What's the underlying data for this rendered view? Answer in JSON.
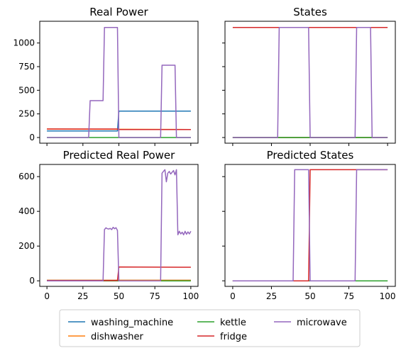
{
  "chart_data": [
    {
      "type": "line",
      "title": "Real Power",
      "xlim": [
        -5,
        105
      ],
      "ylim": [
        -60,
        1230
      ],
      "xticks": [
        0,
        25,
        50,
        75,
        100
      ],
      "show_x_tick_labels": false,
      "yticks": [
        0,
        250,
        500,
        750,
        1000
      ],
      "show_y_tick_labels": true,
      "series": [
        {
          "name": "washing_machine",
          "color": "#1f77b4",
          "points": [
            [
              0,
              70
            ],
            [
              49,
              70
            ],
            [
              50,
              280
            ],
            [
              100,
              280
            ]
          ]
        },
        {
          "name": "dishwasher",
          "color": "#ff7f0e",
          "points": [
            [
              0,
              90
            ],
            [
              100,
              85
            ]
          ]
        },
        {
          "name": "kettle",
          "color": "#2ca02c",
          "points": [
            [
              0,
              0
            ],
            [
              100,
              0
            ]
          ]
        },
        {
          "name": "fridge",
          "color": "#d62728",
          "points": [
            [
              0,
              90
            ],
            [
              49,
              90
            ],
            [
              50,
              85
            ],
            [
              100,
              85
            ]
          ]
        },
        {
          "name": "microwave",
          "color": "#9467bd",
          "points": [
            [
              0,
              0
            ],
            [
              29,
              0
            ],
            [
              30,
              390
            ],
            [
              39,
              390
            ],
            [
              40,
              1165
            ],
            [
              49,
              1165
            ],
            [
              50,
              0
            ],
            [
              79,
              0
            ],
            [
              80,
              765
            ],
            [
              89,
              765
            ],
            [
              90,
              0
            ],
            [
              100,
              0
            ]
          ]
        }
      ]
    },
    {
      "type": "line",
      "title": "States",
      "xlim": [
        -5,
        105
      ],
      "ylim": [
        -60,
        1230
      ],
      "xticks": [
        0,
        25,
        50,
        75,
        100
      ],
      "show_x_tick_labels": false,
      "yticks": [
        0,
        250,
        500,
        750,
        1000
      ],
      "show_y_tick_labels": false,
      "series": [
        {
          "name": "washing_machine",
          "color": "#1f77b4",
          "points": [
            [
              0,
              0
            ],
            [
              100,
              0
            ]
          ]
        },
        {
          "name": "dishwasher",
          "color": "#ff7f0e",
          "points": [
            [
              0,
              0
            ],
            [
              100,
              0
            ]
          ]
        },
        {
          "name": "kettle",
          "color": "#2ca02c",
          "points": [
            [
              0,
              0
            ],
            [
              100,
              0
            ]
          ]
        },
        {
          "name": "fridge",
          "color": "#d62728",
          "points": [
            [
              0,
              1165
            ],
            [
              100,
              1165
            ]
          ]
        },
        {
          "name": "microwave",
          "color": "#9467bd",
          "points": [
            [
              0,
              0
            ],
            [
              29,
              0
            ],
            [
              30,
              1165
            ],
            [
              49,
              1165
            ],
            [
              50,
              0
            ],
            [
              79,
              0
            ],
            [
              80,
              1165
            ],
            [
              89,
              1165
            ],
            [
              90,
              0
            ],
            [
              100,
              0
            ]
          ]
        }
      ]
    },
    {
      "type": "line",
      "title": "Predicted Real Power",
      "xlim": [
        -5,
        105
      ],
      "ylim": [
        -32,
        670
      ],
      "xticks": [
        0,
        25,
        50,
        75,
        100
      ],
      "show_x_tick_labels": true,
      "yticks": [
        0,
        200,
        400,
        600
      ],
      "show_y_tick_labels": true,
      "series": [
        {
          "name": "washing_machine",
          "color": "#1f77b4",
          "points": [
            [
              0,
              3
            ],
            [
              100,
              3
            ]
          ]
        },
        {
          "name": "dishwasher",
          "color": "#ff7f0e",
          "points": [
            [
              0,
              3
            ],
            [
              100,
              3
            ]
          ]
        },
        {
          "name": "kettle",
          "color": "#2ca02c",
          "points": [
            [
              0,
              0
            ],
            [
              100,
              0
            ]
          ]
        },
        {
          "name": "fridge",
          "color": "#d62728",
          "points": [
            [
              0,
              2
            ],
            [
              49,
              2
            ],
            [
              50,
              80
            ],
            [
              100,
              78
            ]
          ]
        },
        {
          "name": "microwave",
          "color": "#9467bd",
          "points": [
            [
              0,
              0
            ],
            [
              39,
              0
            ],
            [
              40,
              295
            ],
            [
              41,
              305
            ],
            [
              42,
              300
            ],
            [
              43,
              298
            ],
            [
              44,
              302
            ],
            [
              45,
              295
            ],
            [
              46,
              308
            ],
            [
              47,
              300
            ],
            [
              48,
              306
            ],
            [
              49,
              290
            ],
            [
              50,
              0
            ],
            [
              79,
              0
            ],
            [
              80,
              620
            ],
            [
              81,
              630
            ],
            [
              82,
              640
            ],
            [
              83,
              570
            ],
            [
              84,
              620
            ],
            [
              85,
              630
            ],
            [
              86,
              615
            ],
            [
              87,
              625
            ],
            [
              88,
              635
            ],
            [
              89,
              610
            ],
            [
              90,
              640
            ],
            [
              91,
              265
            ],
            [
              92,
              285
            ],
            [
              93,
              270
            ],
            [
              94,
              280
            ],
            [
              95,
              265
            ],
            [
              96,
              285
            ],
            [
              97,
              268
            ],
            [
              98,
              282
            ],
            [
              99,
              270
            ],
            [
              100,
              285
            ]
          ]
        }
      ]
    },
    {
      "type": "line",
      "title": "Predicted States",
      "xlim": [
        -5,
        105
      ],
      "ylim": [
        -32,
        670
      ],
      "xticks": [
        0,
        25,
        50,
        75,
        100
      ],
      "show_x_tick_labels": true,
      "yticks": [
        0,
        200,
        400,
        600
      ],
      "show_y_tick_labels": false,
      "series": [
        {
          "name": "washing_machine",
          "color": "#1f77b4",
          "points": [
            [
              0,
              0
            ],
            [
              100,
              0
            ]
          ]
        },
        {
          "name": "dishwasher",
          "color": "#ff7f0e",
          "points": [
            [
              0,
              0
            ],
            [
              100,
              0
            ]
          ]
        },
        {
          "name": "kettle",
          "color": "#2ca02c",
          "points": [
            [
              0,
              0
            ],
            [
              100,
              0
            ]
          ]
        },
        {
          "name": "fridge",
          "color": "#d62728",
          "points": [
            [
              0,
              0
            ],
            [
              49,
              0
            ],
            [
              50,
              640
            ],
            [
              100,
              640
            ]
          ]
        },
        {
          "name": "microwave",
          "color": "#9467bd",
          "points": [
            [
              0,
              0
            ],
            [
              39,
              0
            ],
            [
              40,
              640
            ],
            [
              49,
              640
            ],
            [
              50,
              0
            ],
            [
              79,
              0
            ],
            [
              80,
              640
            ],
            [
              100,
              640
            ]
          ]
        }
      ]
    }
  ],
  "legend": {
    "placement": "bottom-center",
    "entries": [
      {
        "label": "washing_machine",
        "color": "#1f77b4"
      },
      {
        "label": "kettle",
        "color": "#2ca02c"
      },
      {
        "label": "microwave",
        "color": "#9467bd"
      },
      {
        "label": "dishwasher",
        "color": "#ff7f0e"
      },
      {
        "label": "fridge",
        "color": "#d62728"
      }
    ]
  }
}
